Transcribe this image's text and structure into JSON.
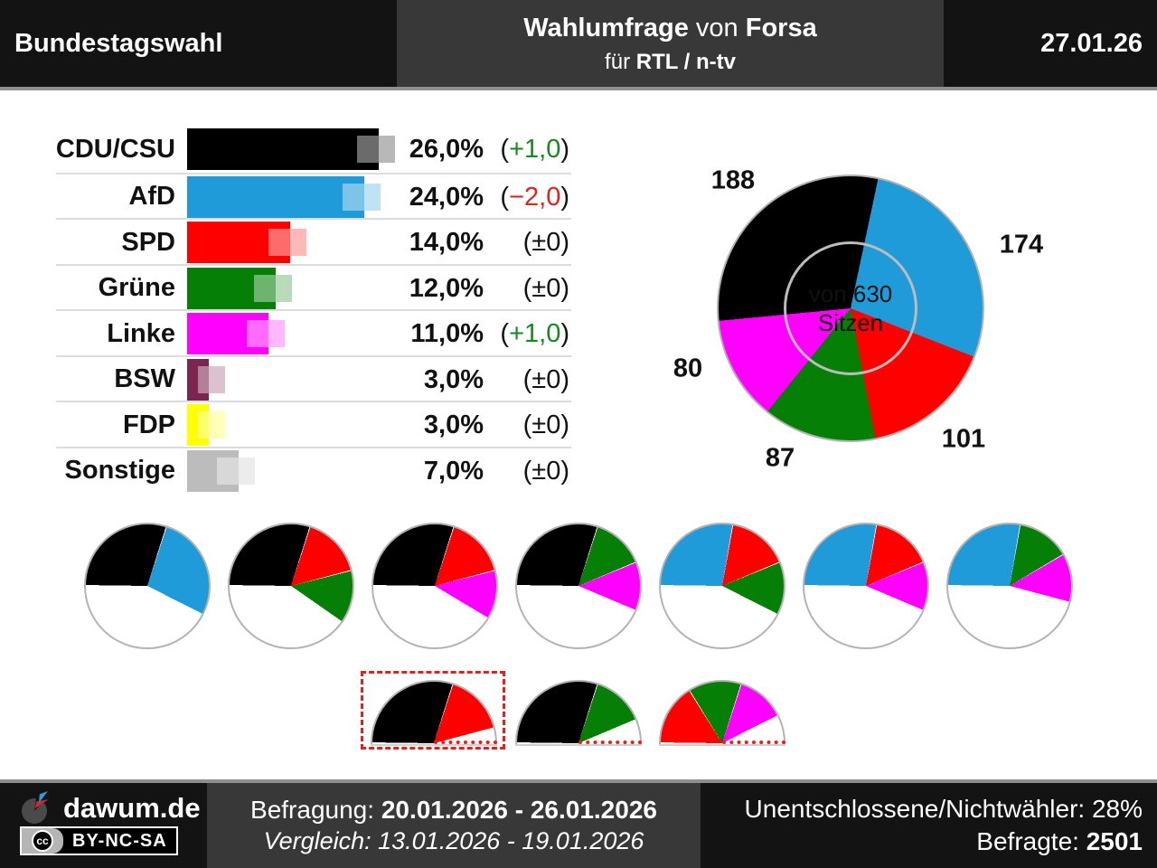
{
  "header": {
    "left": "Bundestagswahl",
    "title": {
      "b1": "Wahlumfrage",
      "mid": " von ",
      "b2": "Forsa"
    },
    "sub": {
      "pre": "für ",
      "b": "RTL / n-tv"
    },
    "date": "27.01.26"
  },
  "colors": {
    "change_up": "#158a1b",
    "change_down": "#e32119",
    "change_zero": "#111111",
    "paren": "#111111",
    "pie_border": "#b3b3b3",
    "highlight_red": "#ea1c1c"
  },
  "chart_data": {
    "type": "bar",
    "bar_chart": {
      "categories": [
        "CDU/CSU",
        "AfD",
        "SPD",
        "Grüne",
        "Linke",
        "BSW",
        "FDP",
        "Sonstige"
      ],
      "values": [
        26.0,
        24.0,
        14.0,
        12.0,
        11.0,
        3.0,
        3.0,
        7.0
      ],
      "value_labels": [
        "26,0%",
        "24,0%",
        "14,0%",
        "12,0%",
        "11,0%",
        "3,0%",
        "3,0%",
        "7,0%"
      ],
      "change_values": [
        "+1,0",
        "−2,0",
        "±0",
        "±0",
        "+1,0",
        "±0",
        "±0",
        "±0"
      ],
      "change_types": [
        "up",
        "down",
        "zero",
        "zero",
        "up",
        "zero",
        "zero",
        "zero"
      ],
      "colors": [
        "#000000",
        "#1e9bd8",
        "#fe0000",
        "#067f06",
        "#ff00ff",
        "#7c2550",
        "#ffff00",
        "#bcbcbc"
      ],
      "xlim": [
        0,
        30
      ]
    },
    "seats_donut": {
      "type": "pie",
      "total": 630,
      "center_label_line1": "von 630",
      "center_label_line2": "Sitzen",
      "start_angle_deg": 12,
      "order_clockwise_from_top": [
        "AfD",
        "SPD",
        "Grüne",
        "Linke",
        "CDU/CSU"
      ],
      "seats": {
        "CDU/CSU": 188,
        "AfD": 174,
        "SPD": 101,
        "Grüne": 87,
        "Linke": 80
      }
    },
    "coalition_pies": [
      [
        "CDU/CSU",
        "AfD"
      ],
      [
        "CDU/CSU",
        "SPD",
        "Grüne"
      ],
      [
        "CDU/CSU",
        "SPD",
        "Linke"
      ],
      [
        "CDU/CSU",
        "Grüne",
        "Linke"
      ],
      [
        "AfD",
        "SPD",
        "Grüne"
      ],
      [
        "AfD",
        "SPD",
        "Linke"
      ],
      [
        "AfD",
        "Grüne",
        "Linke"
      ]
    ],
    "majority_half_pies": {
      "majority_seats": 315,
      "highlighted_index": 0,
      "coalitions": [
        [
          "CDU/CSU",
          "SPD"
        ],
        [
          "CDU/CSU",
          "Grüne"
        ],
        [
          "SPD",
          "Grüne",
          "Linke"
        ]
      ]
    }
  },
  "footer": {
    "brand": "dawum.de",
    "license": "BY-NC-SA",
    "license_icon": "cc",
    "survey_label": "Befragung: ",
    "survey_dates": "20.01.2026 - 26.01.2026",
    "comparison": "Vergleich: 13.01.2026 - 19.01.2026",
    "undecided": "Unentschlossene/Nichtwähler: 28%",
    "respondents_label": "Befragte: ",
    "respondents_value": "2501"
  }
}
